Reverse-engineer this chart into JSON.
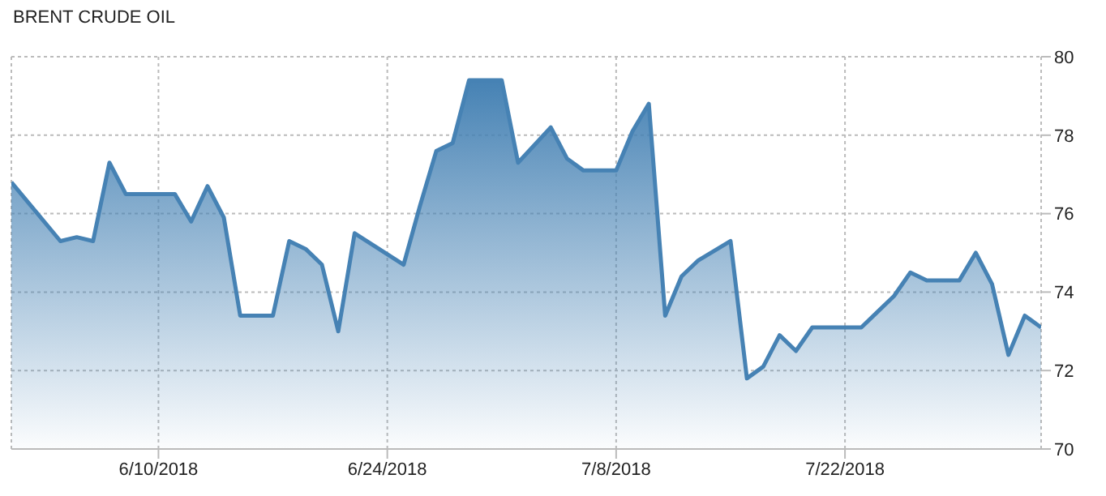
{
  "chart_data": {
    "type": "area",
    "title": "BRENT CRUDE OIL",
    "x": [
      "2018-06-01",
      "2018-06-04",
      "2018-06-05",
      "2018-06-06",
      "2018-06-07",
      "2018-06-08",
      "2018-06-11",
      "2018-06-12",
      "2018-06-13",
      "2018-06-14",
      "2018-06-15",
      "2018-06-17",
      "2018-06-18",
      "2018-06-19",
      "2018-06-20",
      "2018-06-21",
      "2018-06-22",
      "2018-06-25",
      "2018-06-26",
      "2018-06-27",
      "2018-06-28",
      "2018-06-29",
      "2018-07-01",
      "2018-07-02",
      "2018-07-04",
      "2018-07-05",
      "2018-07-06",
      "2018-07-08",
      "2018-07-09",
      "2018-07-10",
      "2018-07-11",
      "2018-07-12",
      "2018-07-13",
      "2018-07-15",
      "2018-07-16",
      "2018-07-17",
      "2018-07-18",
      "2018-07-19",
      "2018-07-20",
      "2018-07-23",
      "2018-07-24",
      "2018-07-25",
      "2018-07-26",
      "2018-07-27",
      "2018-07-29",
      "2018-07-30",
      "2018-07-31",
      "2018-08-01",
      "2018-08-02",
      "2018-08-03"
    ],
    "series": [
      {
        "color": "#4682b4",
        "values": [
          76.8,
          75.3,
          75.4,
          75.3,
          77.3,
          76.5,
          76.5,
          75.8,
          76.7,
          75.9,
          73.4,
          73.4,
          75.3,
          75.1,
          74.7,
          73.0,
          75.5,
          74.7,
          76.2,
          77.6,
          77.8,
          79.4,
          79.4,
          77.3,
          78.2,
          77.4,
          77.1,
          77.1,
          78.1,
          78.8,
          73.4,
          74.4,
          74.8,
          75.3,
          71.8,
          72.1,
          72.9,
          72.5,
          73.1,
          73.1,
          73.5,
          73.9,
          74.5,
          74.3,
          74.3,
          75.0,
          74.2,
          72.4,
          73.4,
          73.1
        ]
      }
    ],
    "xlim": [
      "2018-06-01",
      "2018-08-03"
    ],
    "xticks": [
      {
        "value": "2018-06-10",
        "label": "6/10/2018"
      },
      {
        "value": "2018-06-24",
        "label": "6/24/2018"
      },
      {
        "value": "2018-07-08",
        "label": "7/8/2018"
      },
      {
        "value": "2018-07-22",
        "label": "7/22/2018"
      }
    ],
    "ylim": [
      70,
      80
    ],
    "yticks": [
      70,
      72,
      74,
      76,
      78,
      80
    ],
    "grid": true,
    "legend": false,
    "marker": "none",
    "line_style": "solid"
  }
}
